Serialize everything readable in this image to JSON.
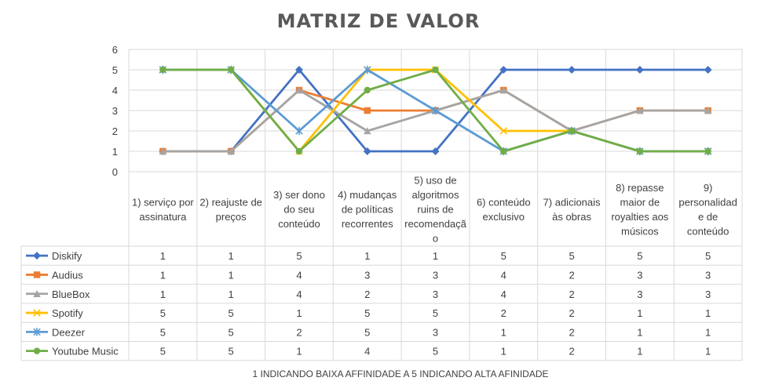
{
  "chart_data": {
    "type": "line",
    "title": "MATRIZ DE VALOR",
    "footnote": "1 INDICANDO BAIXA AFFINIDADE A  5 INDICANDO ALTA AFINIDADE",
    "ylim": [
      0,
      6
    ],
    "yticks": [
      0,
      1,
      2,
      3,
      4,
      5,
      6
    ],
    "grid": true,
    "legend": "data-table-left",
    "categories": [
      [
        "1) serviço por",
        "assinatura"
      ],
      [
        "2) reajuste de",
        "preços"
      ],
      [
        "3) ser dono",
        "do seu",
        "conteúdo"
      ],
      [
        "4) mudanças",
        "de políticas",
        "recorrentes"
      ],
      [
        "5) uso de",
        "algoritmos",
        "ruins de",
        "recomendaçã",
        "o"
      ],
      [
        "6) conteúdo",
        "exclusivo"
      ],
      [
        "7) adicionais",
        "às obras"
      ],
      [
        "8) repasse",
        "maior de",
        "royalties aos",
        "músicos"
      ],
      [
        "9)",
        "personalidad",
        "e de",
        "conteúdo"
      ]
    ],
    "series": [
      {
        "name": "Diskify",
        "color": "#4472C4",
        "marker": "diamond",
        "values": [
          1,
          1,
          5,
          1,
          1,
          5,
          5,
          5,
          5
        ]
      },
      {
        "name": "Audius",
        "color": "#ED7D31",
        "marker": "square",
        "values": [
          1,
          1,
          4,
          3,
          3,
          4,
          2,
          3,
          3
        ]
      },
      {
        "name": "BlueBox",
        "color": "#A5A5A5",
        "marker": "triangle",
        "values": [
          1,
          1,
          4,
          2,
          3,
          4,
          2,
          3,
          3
        ]
      },
      {
        "name": "Spotify",
        "color": "#FFC000",
        "marker": "x",
        "values": [
          5,
          5,
          1,
          5,
          5,
          2,
          2,
          1,
          1
        ]
      },
      {
        "name": "Deezer",
        "color": "#5B9BD5",
        "marker": "star",
        "values": [
          5,
          5,
          2,
          5,
          3,
          1,
          2,
          1,
          1
        ]
      },
      {
        "name": "Youtube Music",
        "color": "#70AD47",
        "marker": "circle",
        "values": [
          5,
          5,
          1,
          4,
          5,
          1,
          2,
          1,
          1
        ]
      }
    ]
  }
}
